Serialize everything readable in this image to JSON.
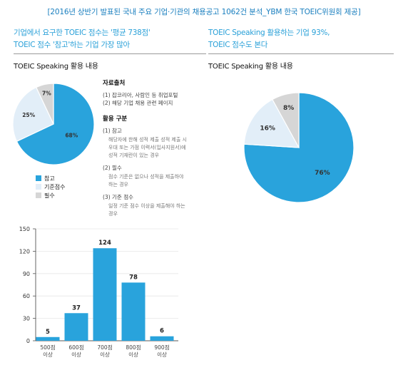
{
  "header": {
    "title": "[2016년 상반기 발표된 국내 주요 기업·기관의 채용공고 1062건 분석_YBM 한국 TOEIC위원회 제공]"
  },
  "left": {
    "headline_line1": "기업에서 요구한 TOEIC 점수는 '평균 738점'",
    "headline_line2": "TOEIC 점수 '참고'하는 기업 가장 많아",
    "section_label": "TOEIC Speaking 활용 내용"
  },
  "right": {
    "headline_line1": "TOEIC Speaking 활용하는 기업 93%,",
    "headline_line2": "TOEIC 점수도 본다",
    "section_label": "TOEIC Speaking 활용 내용"
  },
  "notes": {
    "source_title": "자료출처",
    "source_items": [
      "(1) 잡코리아, 사람인 등 취업포털",
      "(2) 해당 기업 채용 관련 페이지"
    ],
    "usage_title": "활용 구분",
    "usage_items": [
      {
        "label": "(1) 참고",
        "desc_lines": [
          "해당자에 한해 성적 제출 성적 제출 시",
          "우대 또는 가점 이력서(입사지원서)에",
          "성적 기재란이 있는 경우"
        ]
      },
      {
        "label": "(2) 필수",
        "desc_lines": [
          "점수 기준은 없으나 성적을 제출하야",
          "하는 경우"
        ]
      },
      {
        "label": "(3) 기준 점수",
        "desc_lines": [
          "일정 기준 점수 이상을 제출해야 하는",
          "경우"
        ]
      }
    ]
  },
  "legend": [
    {
      "label": "참고",
      "color": "#29a3dc"
    },
    {
      "label": "기준점수",
      "color": "#e2eef8"
    },
    {
      "label": "필수",
      "color": "#d6d6d6"
    }
  ],
  "chart_data": [
    {
      "type": "pie",
      "labels": [
        "참고",
        "기준점수",
        "필수"
      ],
      "values": [
        68,
        25,
        7
      ],
      "value_labels": [
        "68%",
        "25%",
        "7%"
      ],
      "colors": [
        "#29a3dc",
        "#e2eef8",
        "#d6d6d6"
      ]
    },
    {
      "type": "pie",
      "values": [
        76,
        16,
        8
      ],
      "value_labels": [
        "76%",
        "16%",
        "8%"
      ],
      "colors": [
        "#29a3dc",
        "#e2eef8",
        "#d6d6d6"
      ]
    },
    {
      "type": "bar",
      "categories": [
        [
          "500점",
          "이상"
        ],
        [
          "600점",
          "이상"
        ],
        [
          "700점",
          "이상"
        ],
        [
          "800점",
          "이상"
        ],
        [
          "900점",
          "이상"
        ]
      ],
      "values": [
        5,
        37,
        124,
        78,
        6
      ],
      "yticks": [
        0,
        30,
        60,
        90,
        120,
        150
      ],
      "ylim": [
        0,
        150
      ],
      "bar_color": "#29a3dc"
    }
  ]
}
